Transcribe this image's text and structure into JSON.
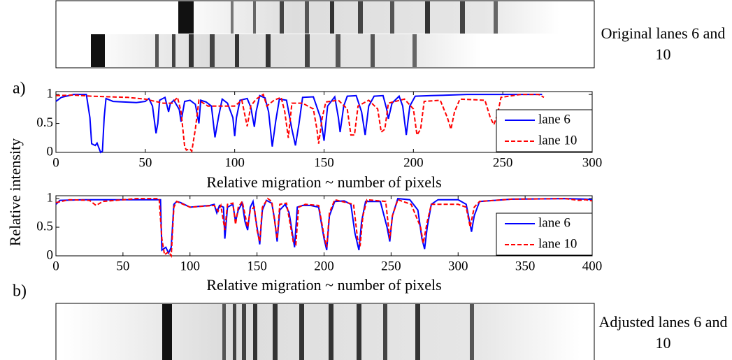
{
  "figure": {
    "panel_a": "a)",
    "panel_b": "b)",
    "ylabel": "Relative intensity",
    "top_caption": "Original lanes 6 and 10",
    "bottom_caption": "Adjusted lanes 6 and 10"
  },
  "chart_data": [
    {
      "type": "line",
      "xlabel": "Relative migration ~ number of pixels",
      "xlim": [
        0,
        300
      ],
      "xticks": [
        0,
        50,
        100,
        150,
        200,
        250,
        300
      ],
      "ylim": [
        0,
        1.05
      ],
      "yticks": [
        0,
        0.5,
        1
      ],
      "legend": "lower right",
      "series": [
        {
          "name": "lane 6",
          "color": "#0000ff",
          "style": "solid",
          "x": [
            0,
            3,
            10,
            17,
            19,
            20,
            22,
            23,
            25,
            26,
            27,
            28,
            32,
            45,
            50,
            52,
            54,
            56,
            57,
            58,
            61,
            63,
            64,
            66,
            69,
            70,
            72,
            75,
            78,
            80,
            81,
            84,
            87,
            89,
            91,
            93,
            96,
            99,
            100,
            101,
            103,
            107,
            109,
            111,
            112,
            114,
            117,
            119,
            121,
            123,
            125,
            129,
            132,
            134,
            136,
            138,
            144,
            148,
            150,
            152,
            156,
            158,
            159,
            161,
            163,
            168,
            171,
            173,
            175,
            178,
            183,
            185,
            186,
            188,
            192,
            194,
            196,
            198,
            201,
            210,
            220,
            230,
            260,
            272
          ],
          "values": [
            0.88,
            0.95,
            1,
            1,
            0.6,
            0.15,
            0.12,
            0.16,
            0,
            0.02,
            0.6,
            0.93,
            0.88,
            0.86,
            0.88,
            0.93,
            0.8,
            0.33,
            0.5,
            0.9,
            0.95,
            0.7,
            0.84,
            0.9,
            0.74,
            0.53,
            0.88,
            0.9,
            0.83,
            0.5,
            0.9,
            0.87,
            0.8,
            0.26,
            0.62,
            0.92,
            0.85,
            0.6,
            0.28,
            0.6,
            0.9,
            0.93,
            0.78,
            0.44,
            0.7,
            0.98,
            0.94,
            0.7,
            0.1,
            0.55,
            0.92,
            0.9,
            0.4,
            0.12,
            0.5,
            0.95,
            0.96,
            0.6,
            0.2,
            0.8,
            0.96,
            0.6,
            0.35,
            0.8,
            0.97,
            0.98,
            0.7,
            0.3,
            0.8,
            0.97,
            0.98,
            0.75,
            0.58,
            0.85,
            0.97,
            0.8,
            0.3,
            0.8,
            0.97,
            0.98,
            0.99,
            1,
            1,
            1
          ]
        },
        {
          "name": "lane 10",
          "color": "#ff0000",
          "style": "dashed",
          "x": [
            0,
            10,
            20,
            30,
            40,
            50,
            60,
            65,
            68,
            70,
            72,
            73,
            75,
            76,
            78,
            80,
            85,
            95,
            100,
            104,
            106,
            107,
            109,
            112,
            116,
            118,
            122,
            126,
            128,
            130,
            132,
            138,
            144,
            146,
            147,
            149,
            151,
            158,
            163,
            165,
            167,
            169,
            175,
            180,
            182,
            184,
            186,
            195,
            200,
            202,
            204,
            206,
            215,
            219,
            221,
            223,
            226,
            240,
            243,
            245,
            247,
            249,
            260,
            270,
            273
          ],
          "values": [
            0.98,
            0.99,
            0.97,
            0.96,
            0.95,
            0.92,
            0.85,
            0.85,
            0.95,
            0.7,
            0.1,
            0.04,
            0.06,
            0.02,
            0.4,
            0.9,
            0.8,
            0.8,
            0.8,
            0.9,
            0.6,
            0.45,
            0.8,
            0.92,
            1,
            0.8,
            0.9,
            0.95,
            0.7,
            0.25,
            0.85,
            0.85,
            0.75,
            0.4,
            0.15,
            0.6,
            0.87,
            0.9,
            0.75,
            0.3,
            0.3,
            0.8,
            0.9,
            0.75,
            0.35,
            0.4,
            0.85,
            0.92,
            0.75,
            0.3,
            0.4,
            0.88,
            0.9,
            0.6,
            0.4,
            0.7,
            0.92,
            0.9,
            0.6,
            0.48,
            0.65,
            0.95,
            1,
            1,
            0.95
          ]
        }
      ]
    },
    {
      "type": "line",
      "xlabel": "Relative migration ~ number of pixels",
      "xlim": [
        0,
        400
      ],
      "xticks": [
        0,
        50,
        100,
        150,
        200,
        250,
        300,
        350,
        400
      ],
      "ylim": [
        0,
        1.05
      ],
      "yticks": [
        0,
        0.5,
        1
      ],
      "legend": "lower right",
      "series": [
        {
          "name": "lane 6",
          "color": "#0000ff",
          "style": "solid",
          "x": [
            0,
            3,
            20,
            70,
            78,
            79,
            82,
            84,
            86,
            88,
            90,
            93,
            100,
            115,
            118,
            120,
            122,
            125,
            126,
            128,
            132,
            134,
            136,
            139,
            141,
            143,
            145,
            147,
            150,
            152,
            154,
            157,
            161,
            163,
            165,
            167,
            171,
            174,
            177,
            178,
            180,
            184,
            190,
            196,
            200,
            202,
            204,
            208,
            215,
            220,
            223,
            226,
            228,
            231,
            242,
            247,
            249,
            251,
            255,
            264,
            270,
            273,
            275,
            277,
            280,
            285,
            300,
            306,
            309,
            310,
            312,
            316,
            340,
            380,
            395,
            400
          ],
          "values": [
            0.9,
            0.97,
            0.98,
            0.98,
            0.98,
            0.1,
            0.15,
            0.05,
            0.15,
            0.9,
            0.95,
            0.93,
            0.85,
            0.88,
            0.9,
            0.75,
            0.88,
            0.85,
            0.3,
            0.85,
            0.9,
            0.6,
            0.8,
            0.92,
            0.6,
            0.45,
            0.85,
            0.95,
            0.5,
            0.2,
            0.8,
            0.97,
            0.92,
            0.65,
            0.25,
            0.8,
            0.9,
            0.75,
            0.3,
            0.15,
            0.85,
            0.88,
            0.88,
            0.85,
            0.3,
            0.1,
            0.7,
            0.95,
            0.96,
            0.9,
            0.4,
            0.1,
            0.6,
            0.95,
            0.95,
            0.5,
            0.25,
            0.7,
            1,
            0.98,
            0.8,
            0.3,
            0.12,
            0.5,
            0.9,
            0.98,
            0.98,
            0.9,
            0.55,
            0.42,
            0.7,
            0.95,
            0.99,
            1,
            0.99,
            0.98
          ]
        },
        {
          "name": "lane 10",
          "color": "#ff0000",
          "style": "dashed",
          "x": [
            0,
            10,
            25,
            30,
            35,
            60,
            77,
            79,
            81,
            84,
            86,
            88,
            90,
            100,
            118,
            121,
            123,
            126,
            128,
            132,
            134,
            136,
            139,
            143,
            145,
            148,
            150,
            152,
            154,
            158,
            161,
            165,
            167,
            172,
            177,
            179,
            181,
            186,
            196,
            200,
            202,
            204,
            208,
            222,
            225,
            227,
            229,
            232,
            246,
            249,
            251,
            255,
            265,
            272,
            274,
            277,
            280,
            300,
            306,
            309,
            312,
            316,
            340,
            380,
            390,
            395,
            400
          ],
          "values": [
            0.93,
            0.98,
            0.97,
            0.88,
            0.95,
            1,
            1,
            0.3,
            0.02,
            0.07,
            0,
            0.85,
            0.95,
            0.85,
            0.88,
            0.78,
            0.88,
            0.45,
            0.9,
            0.92,
            0.55,
            0.85,
            0.95,
            0.5,
            0.8,
            0.85,
            0.45,
            0.25,
            0.85,
            1,
            0.95,
            0.3,
            0.9,
            0.92,
            0.25,
            0.2,
            0.85,
            0.9,
            0.88,
            0.35,
            0.15,
            0.75,
            0.98,
            0.9,
            0.3,
            0.2,
            0.7,
            0.98,
            0.95,
            0.3,
            0.7,
            0.98,
            0.9,
            0.5,
            0.22,
            0.6,
            0.9,
            0.9,
            0.85,
            0.5,
            0.85,
            0.95,
            0.99,
            1,
            0.97,
            0.98,
            0.96
          ]
        }
      ]
    }
  ]
}
